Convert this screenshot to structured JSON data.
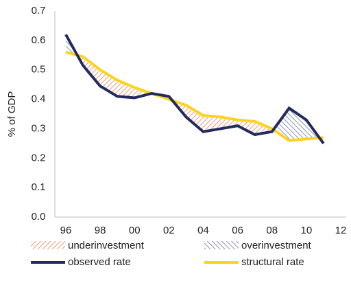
{
  "chart_data": {
    "type": "line",
    "y_label": "% of GDP",
    "categories": [
      "96",
      null,
      "98",
      null,
      "00",
      null,
      "02",
      null,
      "04",
      null,
      "06",
      null,
      "08",
      null,
      "10",
      null,
      "12"
    ],
    "series": [
      {
        "name": "observed rate",
        "color": "#232b5e",
        "values": [
          0.62,
          0.515,
          0.445,
          0.41,
          0.405,
          0.42,
          0.41,
          0.34,
          0.29,
          0.3,
          0.31,
          0.28,
          0.29,
          0.37,
          0.33,
          0.25,
          null
        ]
      },
      {
        "name": "structural rate",
        "color": "#fdd31c",
        "values": [
          0.56,
          0.545,
          0.5,
          0.465,
          0.44,
          0.42,
          0.4,
          0.38,
          0.345,
          0.34,
          0.33,
          0.325,
          0.3,
          0.26,
          0.265,
          0.27,
          null
        ]
      }
    ],
    "areas": [
      {
        "name": "underinvestment",
        "color": "#f29a74"
      },
      {
        "name": "overinvestment",
        "color": "#8a93b2"
      }
    ],
    "ylim": [
      0,
      0.7
    ],
    "yticks": [
      {
        "value": 0,
        "label": "0.0"
      },
      0.1,
      0.2,
      0.3,
      0.4,
      0.5,
      0.6,
      0.7
    ],
    "grid": false
  }
}
